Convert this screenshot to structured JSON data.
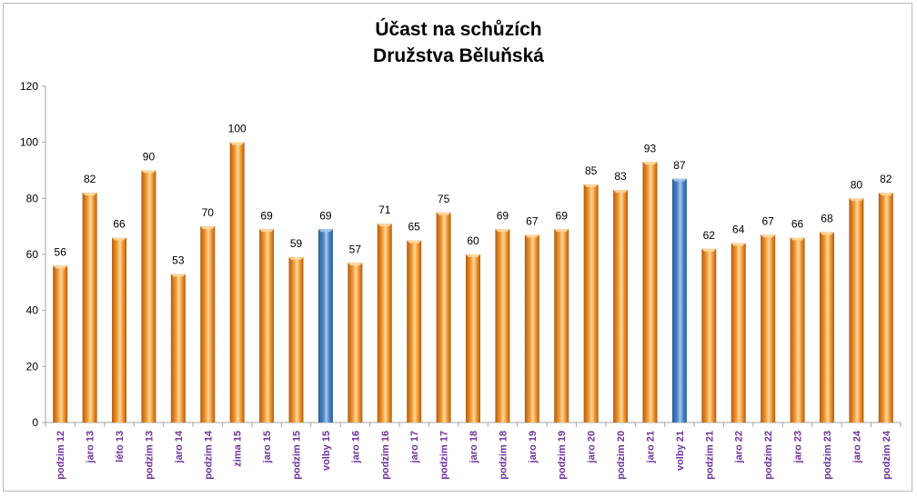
{
  "chart_data": {
    "type": "bar",
    "title_lines": [
      "Účast na schůzích",
      "Družstva Běluňská"
    ],
    "xlabel": "",
    "ylabel": "",
    "ylim": [
      0,
      120
    ],
    "yticks": [
      0,
      20,
      40,
      60,
      80,
      100,
      120
    ],
    "grid": false,
    "legend": "none",
    "categories": [
      "podzim 12",
      "jaro 13",
      "léto 13",
      "podzim 13",
      "jaro 14",
      "podzim 14",
      "zima 15",
      "jaro 15",
      "podzim 15",
      "volby 15",
      "jaro 16",
      "podzim 16",
      "jaro 17",
      "podzim 17",
      "jaro 18",
      "podzim 18",
      "jaro 19",
      "podzim 19",
      "jaro 20",
      "podzim 20",
      "jaro 21",
      "volby 21",
      "podzim 21",
      "jaro 22",
      "podzim 22",
      "jaro 23",
      "podzim 23",
      "jaro 24",
      "podzim 24"
    ],
    "values": [
      56,
      82,
      66,
      90,
      53,
      70,
      100,
      69,
      59,
      69,
      57,
      71,
      65,
      75,
      60,
      69,
      67,
      69,
      85,
      83,
      93,
      87,
      62,
      64,
      67,
      66,
      68,
      80,
      82
    ],
    "highlighted_categories": [
      "volby 15",
      "volby 21"
    ],
    "colors": {
      "bar": "#f39a34",
      "bar_dark": "#b35c0c",
      "bar_light": "#ffd9a1",
      "highlight": "#4f86c6",
      "highlight_dark": "#2c5d9a",
      "highlight_light": "#a9c8ec",
      "category_label": "#7030a0",
      "axis": "#a6a6a6",
      "text": "#000000"
    }
  }
}
